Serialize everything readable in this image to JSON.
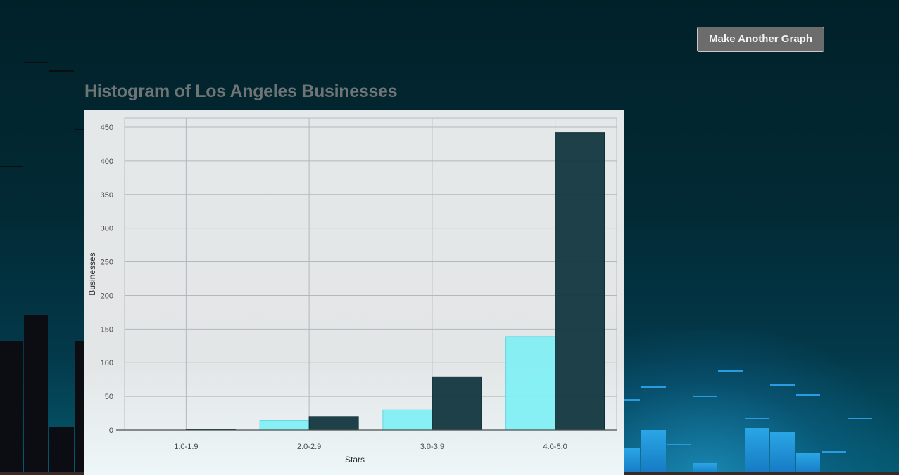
{
  "header": {
    "make_another_label": "Make Another Graph"
  },
  "graph_title": "Histogram of Los Angeles Businesses",
  "chart_data": {
    "type": "bar",
    "title": "Histogram of Los Angeles Businesses",
    "xlabel": "Stars",
    "ylabel": "Businesses",
    "categories": [
      "1.0-1.9",
      "2.0-2.9",
      "3.0-3.9",
      "4.0-5.0"
    ],
    "series": [
      {
        "color": "#7ff0f5",
        "values": [
          0,
          14,
          30,
          139
        ]
      },
      {
        "color": "#173a43",
        "values": [
          1,
          20,
          79,
          442
        ]
      }
    ],
    "ylim": [
      0,
      450
    ],
    "yticks": [
      0,
      50,
      100,
      150,
      200,
      250,
      300,
      350,
      400,
      450
    ],
    "grid": true,
    "legend": "none"
  }
}
